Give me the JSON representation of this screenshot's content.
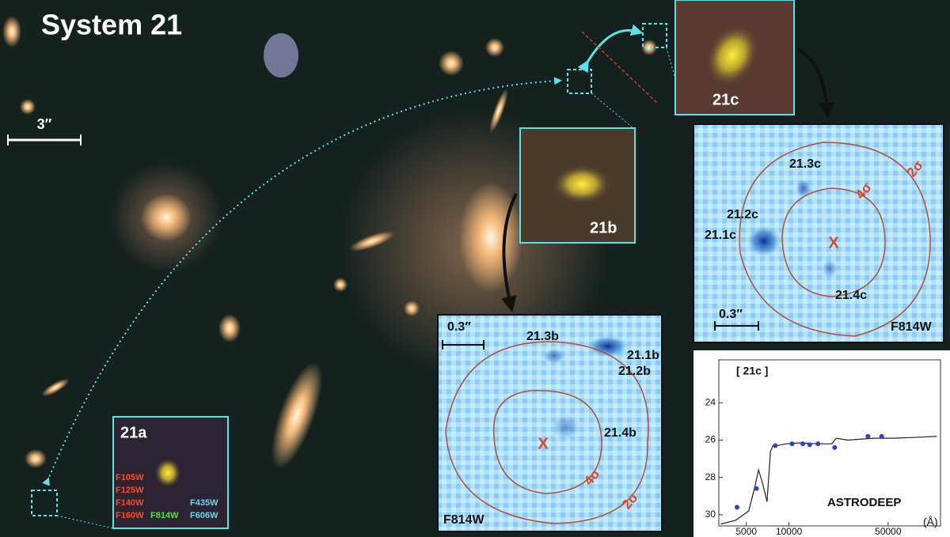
{
  "title": "System 21",
  "scale_bar": "3″",
  "inset_a": {
    "label": "21a",
    "filters_red": [
      "F105W",
      "F125W",
      "F140W",
      "F160W"
    ],
    "filter_green": "F814W",
    "filters_blue": [
      "F435W",
      "F606W"
    ]
  },
  "inset_b": {
    "label": "21b"
  },
  "inset_c": {
    "label": "21c"
  },
  "panel_b": {
    "scale": "0.3″",
    "filter": "F814W",
    "labels": [
      "21.3b",
      "21.1b",
      "21.2b",
      "21.4b"
    ],
    "center": "X",
    "contours": [
      "4σ",
      "2σ"
    ]
  },
  "panel_c": {
    "scale": "0.3″",
    "filter": "F814W",
    "labels": [
      "21.3c",
      "21.2c",
      "21.1c",
      "21.4c"
    ],
    "center": "X",
    "contours": [
      "4σ",
      "2σ"
    ]
  },
  "chart_data": {
    "type": "line",
    "title": "[ 21c ]",
    "annotation": "ASTRODEEP",
    "x_label": "(Å)",
    "xscale": "log",
    "xlim": [
      3200,
      117000
    ],
    "xticks": [
      5000,
      10000,
      50000
    ],
    "ylim": [
      30.6,
      21.7
    ],
    "yticks": [
      24,
      26,
      28,
      30
    ],
    "series": [
      {
        "name": "model",
        "color": "#222222",
        "x": [
          3300,
          4200,
          5200,
          5700,
          6100,
          6500,
          7000,
          7400,
          7700,
          8200,
          9500,
          12000,
          16000,
          20000,
          21500,
          26000,
          32000,
          40000,
          55000,
          80000,
          110000
        ],
        "values": [
          30.5,
          30.3,
          29.8,
          28.6,
          27.6,
          28.3,
          29.3,
          26.6,
          26.3,
          26.3,
          26.2,
          26.15,
          26.2,
          26.2,
          25.9,
          26.0,
          25.95,
          25.9,
          25.9,
          25.85,
          25.8
        ]
      },
      {
        "name": "photometry",
        "color": "#2a44c8",
        "x": [
          4300,
          5900,
          8000,
          10500,
          12500,
          14000,
          16000,
          21000,
          36000,
          45000
        ],
        "values": [
          29.6,
          28.6,
          26.3,
          26.2,
          26.2,
          26.25,
          26.2,
          26.4,
          25.8,
          25.8
        ]
      }
    ]
  }
}
